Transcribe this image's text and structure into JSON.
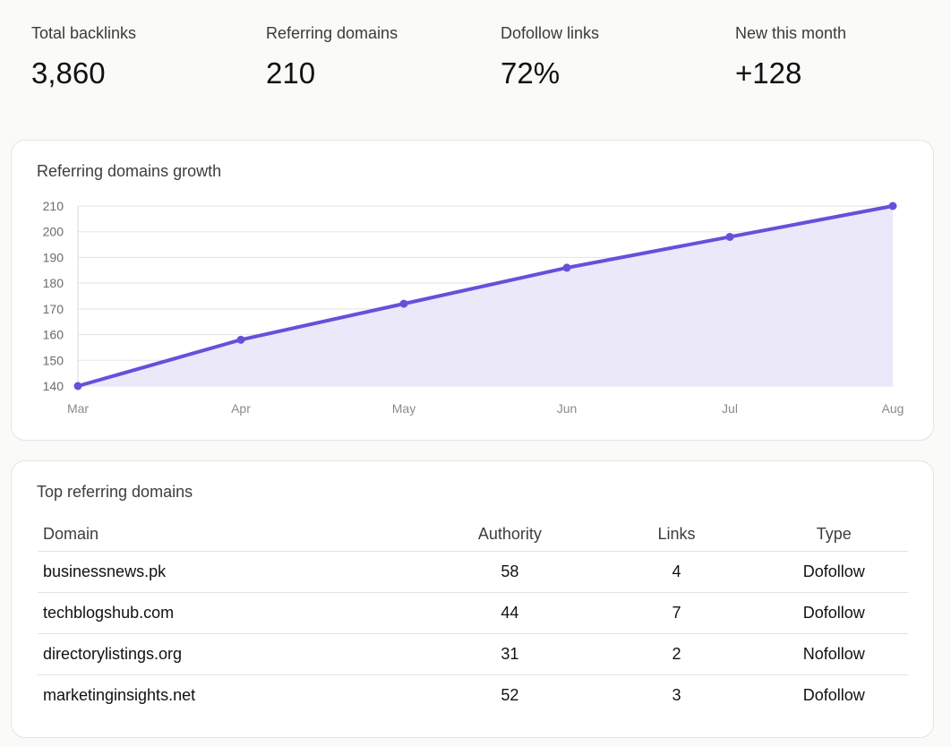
{
  "stats": [
    {
      "label": "Total backlinks",
      "value": "3,860"
    },
    {
      "label": "Referring domains",
      "value": "210"
    },
    {
      "label": "Dofollow links",
      "value": "72%"
    },
    {
      "label": "New this month",
      "value": "+128"
    }
  ],
  "growth_card": {
    "title": "Referring domains growth"
  },
  "chart_data": {
    "type": "area",
    "title": "",
    "x": [
      "Mar",
      "Apr",
      "May",
      "Jun",
      "Jul",
      "Aug"
    ],
    "series": [
      {
        "values": [
          140,
          158,
          172,
          186,
          198,
          210
        ]
      }
    ],
    "yticks": [
      "140",
      "150",
      "160",
      "170",
      "180",
      "190",
      "200",
      "210"
    ],
    "ylim": [
      140,
      210
    ],
    "grid": true,
    "colors": {
      "line": "#6650db",
      "fill": "#ebe8fa",
      "grid": "#e3e3e3"
    }
  },
  "table_card": {
    "title": "Top referring domains",
    "headers": {
      "domain": "Domain",
      "authority": "Authority",
      "links": "Links",
      "type": "Type"
    },
    "rows": [
      {
        "domain": "businessnews.pk",
        "authority": "58",
        "links": "4",
        "type": "Dofollow"
      },
      {
        "domain": "techblogshub.com",
        "authority": "44",
        "links": "7",
        "type": "Dofollow"
      },
      {
        "domain": "directorylistings.org",
        "authority": "31",
        "links": "2",
        "type": "Nofollow"
      },
      {
        "domain": "marketinginsights.net",
        "authority": "52",
        "links": "3",
        "type": "Dofollow"
      }
    ]
  },
  "colors": {
    "dofollow": "#1a7a1a",
    "nofollow": "#4a4a4a"
  }
}
